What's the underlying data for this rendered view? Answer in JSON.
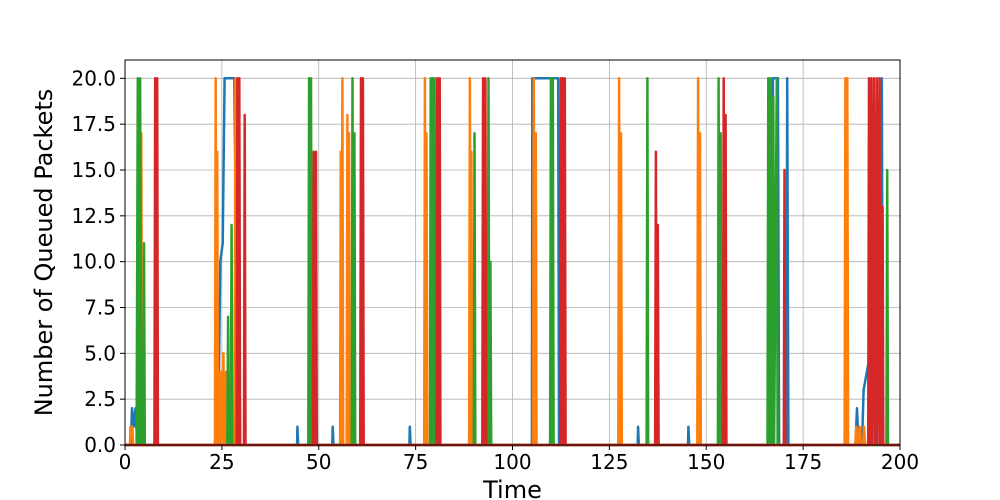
{
  "chart_data": {
    "type": "line",
    "title": "",
    "xlabel": "Time",
    "ylabel": "Number of Queued Packets",
    "xlim": [
      0,
      200
    ],
    "ylim": [
      0,
      21
    ],
    "grid": true,
    "xticks": [
      0,
      25,
      50,
      75,
      100,
      125,
      150,
      175,
      200
    ],
    "xtick_labels": [
      "0",
      "25",
      "50",
      "75",
      "100",
      "125",
      "150",
      "175",
      "200"
    ],
    "yticks": [
      0,
      2.5,
      5,
      7.5,
      10,
      12.5,
      15,
      17.5,
      20
    ],
    "ytick_labels": [
      "0.0",
      "2.5",
      "5.0",
      "7.5",
      "10.0",
      "12.5",
      "15.0",
      "17.5",
      "20.0"
    ],
    "series": [
      {
        "color": "#1f77b4",
        "points": [
          [
            0,
            0
          ],
          [
            1.5,
            0
          ],
          [
            1.8,
            2
          ],
          [
            2.3,
            1
          ],
          [
            2.7,
            2
          ],
          [
            3.2,
            0
          ],
          [
            24,
            0
          ],
          [
            24.6,
            10
          ],
          [
            25.2,
            11
          ],
          [
            25.7,
            20
          ],
          [
            26.2,
            20
          ],
          [
            28.2,
            20
          ],
          [
            28.6,
            12
          ],
          [
            29.2,
            14
          ],
          [
            29.7,
            0
          ],
          [
            44.4,
            0
          ],
          [
            44.5,
            1
          ],
          [
            44.7,
            0
          ],
          [
            53.5,
            0
          ],
          [
            53.6,
            1
          ],
          [
            53.8,
            0
          ],
          [
            73.4,
            0
          ],
          [
            73.5,
            1
          ],
          [
            73.7,
            0
          ],
          [
            105,
            0
          ],
          [
            105.1,
            20
          ],
          [
            111.8,
            20
          ],
          [
            112,
            0
          ],
          [
            132.3,
            0
          ],
          [
            132.4,
            1
          ],
          [
            132.6,
            0
          ],
          [
            145.3,
            0
          ],
          [
            145.4,
            1
          ],
          [
            145.6,
            0
          ],
          [
            167,
            0
          ],
          [
            167.2,
            20
          ],
          [
            168.5,
            20
          ],
          [
            168.8,
            0
          ],
          [
            170.7,
            0
          ],
          [
            170.9,
            20
          ],
          [
            171.2,
            0
          ],
          [
            188.5,
            0
          ],
          [
            188.9,
            2
          ],
          [
            189.3,
            0
          ],
          [
            190.2,
            0
          ],
          [
            190.6,
            3
          ],
          [
            192.3,
            5
          ],
          [
            192.7,
            7
          ],
          [
            193.6,
            7
          ],
          [
            194,
            0
          ],
          [
            195,
            0
          ],
          [
            195.3,
            20
          ],
          [
            195.6,
            0
          ],
          [
            200,
            0
          ]
        ]
      },
      {
        "color": "#ff7f0e",
        "points": [
          [
            0,
            0
          ],
          [
            1.3,
            0
          ],
          [
            1.4,
            1
          ],
          [
            1.9,
            1
          ],
          [
            2.1,
            0
          ],
          [
            4,
            0
          ],
          [
            4.2,
            17
          ],
          [
            4.4,
            0
          ],
          [
            23.2,
            0
          ],
          [
            23.4,
            20
          ],
          [
            23.6,
            0
          ],
          [
            23.8,
            16
          ],
          [
            24,
            0
          ],
          [
            24.2,
            4
          ],
          [
            24.4,
            0
          ],
          [
            24.7,
            4
          ],
          [
            24.9,
            0
          ],
          [
            25.4,
            5
          ],
          [
            25.6,
            0
          ],
          [
            26.1,
            4
          ],
          [
            26.3,
            0
          ],
          [
            28.3,
            0
          ],
          [
            28.5,
            20
          ],
          [
            28.7,
            0
          ],
          [
            28.9,
            4
          ],
          [
            29.1,
            0
          ],
          [
            55.5,
            0
          ],
          [
            55.7,
            16
          ],
          [
            55.9,
            0
          ],
          [
            56.1,
            20
          ],
          [
            56.3,
            0
          ],
          [
            57.2,
            0
          ],
          [
            57.4,
            18
          ],
          [
            57.6,
            0
          ],
          [
            57.8,
            17
          ],
          [
            58,
            0
          ],
          [
            77.2,
            0
          ],
          [
            77.4,
            20
          ],
          [
            77.6,
            0
          ],
          [
            77.8,
            17
          ],
          [
            78,
            0
          ],
          [
            88.8,
            0
          ],
          [
            89,
            20
          ],
          [
            89.2,
            0
          ],
          [
            89.4,
            16
          ],
          [
            89.6,
            0
          ],
          [
            105.3,
            0
          ],
          [
            105.5,
            20
          ],
          [
            105.7,
            0
          ],
          [
            106,
            17
          ],
          [
            106.2,
            0
          ],
          [
            127.3,
            0
          ],
          [
            127.5,
            20
          ],
          [
            127.7,
            0
          ],
          [
            128,
            17
          ],
          [
            128.2,
            0
          ],
          [
            147.7,
            0
          ],
          [
            147.9,
            20
          ],
          [
            148.1,
            0
          ],
          [
            148.4,
            17
          ],
          [
            148.6,
            0
          ],
          [
            185.7,
            0
          ],
          [
            185.9,
            20
          ],
          [
            186.1,
            0
          ],
          [
            186.4,
            20
          ],
          [
            186.6,
            0
          ],
          [
            188.5,
            0
          ],
          [
            188.7,
            1
          ],
          [
            189,
            0
          ],
          [
            189.6,
            1
          ],
          [
            189.9,
            0
          ],
          [
            190.5,
            0
          ],
          [
            190.7,
            1
          ],
          [
            191,
            0
          ],
          [
            200,
            0
          ]
        ]
      },
      {
        "color": "#2ca02c",
        "points": [
          [
            0,
            0
          ],
          [
            3,
            0
          ],
          [
            3.3,
            20
          ],
          [
            3.6,
            0
          ],
          [
            3.9,
            20
          ],
          [
            4.2,
            0
          ],
          [
            4.7,
            0
          ],
          [
            4.9,
            11
          ],
          [
            5.1,
            0
          ],
          [
            26.4,
            0
          ],
          [
            26.6,
            7
          ],
          [
            26.8,
            0
          ],
          [
            27.3,
            0
          ],
          [
            27.5,
            12
          ],
          [
            27.7,
            0
          ],
          [
            47.3,
            0
          ],
          [
            47.5,
            20
          ],
          [
            47.7,
            0
          ],
          [
            48,
            20
          ],
          [
            48.2,
            0
          ],
          [
            58.5,
            0
          ],
          [
            58.7,
            20
          ],
          [
            58.9,
            0
          ],
          [
            59.2,
            17
          ],
          [
            59.4,
            0
          ],
          [
            78.7,
            0
          ],
          [
            78.9,
            20
          ],
          [
            79.1,
            0
          ],
          [
            79.4,
            20
          ],
          [
            79.6,
            0
          ],
          [
            79.9,
            20
          ],
          [
            80.1,
            0
          ],
          [
            90,
            0
          ],
          [
            90.2,
            17
          ],
          [
            90.4,
            0
          ],
          [
            93.6,
            0
          ],
          [
            93.8,
            20
          ],
          [
            94,
            0
          ],
          [
            94.3,
            10
          ],
          [
            94.5,
            0
          ],
          [
            109.7,
            0
          ],
          [
            109.9,
            20
          ],
          [
            110.1,
            0
          ],
          [
            110.4,
            20
          ],
          [
            110.6,
            0
          ],
          [
            134.6,
            0
          ],
          [
            134.8,
            20
          ],
          [
            135,
            0
          ],
          [
            153,
            0
          ],
          [
            153.2,
            20
          ],
          [
            153.4,
            0
          ],
          [
            153.7,
            17
          ],
          [
            153.9,
            0
          ],
          [
            165.8,
            0
          ],
          [
            166,
            20
          ],
          [
            166.2,
            0
          ],
          [
            166.6,
            20
          ],
          [
            166.8,
            0
          ],
          [
            167.3,
            19
          ],
          [
            167.5,
            0
          ],
          [
            168.2,
            20
          ],
          [
            168.4,
            0
          ],
          [
            196.5,
            0
          ],
          [
            196.7,
            15
          ],
          [
            196.9,
            0
          ],
          [
            200,
            0
          ]
        ]
      },
      {
        "color": "#d62728",
        "points": [
          [
            0,
            0
          ],
          [
            7.6,
            0
          ],
          [
            7.8,
            20
          ],
          [
            8,
            0
          ],
          [
            8.3,
            20
          ],
          [
            8.5,
            0
          ],
          [
            28.8,
            0
          ],
          [
            29,
            20
          ],
          [
            29.2,
            0
          ],
          [
            29.5,
            20
          ],
          [
            29.7,
            0
          ],
          [
            30.7,
            0
          ],
          [
            30.9,
            18
          ],
          [
            31.1,
            0
          ],
          [
            48.5,
            0
          ],
          [
            48.7,
            16
          ],
          [
            48.9,
            0
          ],
          [
            49.3,
            16
          ],
          [
            49.5,
            0
          ],
          [
            60.7,
            0
          ],
          [
            60.9,
            20
          ],
          [
            61.1,
            0
          ],
          [
            61.4,
            20
          ],
          [
            61.6,
            0
          ],
          [
            80.4,
            0
          ],
          [
            80.6,
            20
          ],
          [
            80.8,
            0
          ],
          [
            81.2,
            20
          ],
          [
            81.4,
            0
          ],
          [
            92.2,
            0
          ],
          [
            92.4,
            20
          ],
          [
            92.6,
            0
          ],
          [
            93,
            20
          ],
          [
            93.2,
            0
          ],
          [
            112.3,
            0
          ],
          [
            112.5,
            20
          ],
          [
            112.7,
            0
          ],
          [
            113,
            20
          ],
          [
            113.2,
            0
          ],
          [
            113.5,
            20
          ],
          [
            113.7,
            0
          ],
          [
            136.8,
            0
          ],
          [
            137,
            16
          ],
          [
            137.2,
            0
          ],
          [
            137.5,
            12
          ],
          [
            137.7,
            0
          ],
          [
            154.3,
            0
          ],
          [
            154.5,
            20
          ],
          [
            154.7,
            0
          ],
          [
            155,
            18
          ],
          [
            155.2,
            0
          ],
          [
            170,
            0
          ],
          [
            170.2,
            15
          ],
          [
            170.4,
            0
          ],
          [
            191.8,
            0
          ],
          [
            192,
            20
          ],
          [
            192.2,
            0
          ],
          [
            192.6,
            20
          ],
          [
            192.8,
            0
          ],
          [
            193.3,
            20
          ],
          [
            193.5,
            0
          ],
          [
            194,
            20
          ],
          [
            194.2,
            0
          ],
          [
            194.7,
            20
          ],
          [
            194.9,
            0
          ],
          [
            195.5,
            13
          ],
          [
            195.7,
            0
          ],
          [
            200,
            0
          ]
        ]
      }
    ]
  }
}
